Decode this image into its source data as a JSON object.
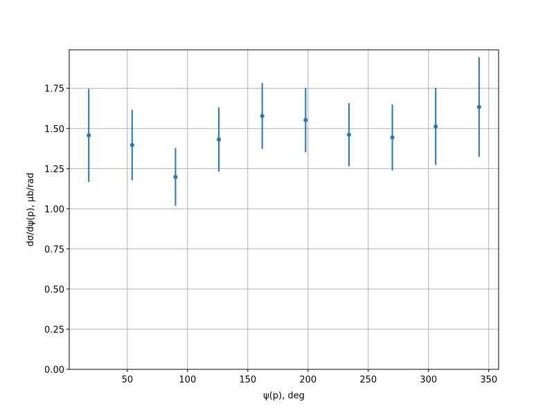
{
  "chart_data": {
    "type": "errorbar",
    "x_label": "ψ(p), deg",
    "y_label": "dσ/dψ(p), μb/rad",
    "x": [
      18,
      54,
      90,
      126,
      162,
      198,
      234,
      270,
      306,
      342
    ],
    "values": [
      1.457,
      1.397,
      1.198,
      1.431,
      1.578,
      1.552,
      1.461,
      1.444,
      1.513,
      1.634
    ],
    "errors": [
      0.29,
      0.22,
      0.18,
      0.2,
      0.205,
      0.2,
      0.197,
      0.205,
      0.24,
      0.31
    ],
    "color": "#1f77b4",
    "xlim": [
      1.8,
      358.2
    ],
    "xticks": [
      50,
      100,
      150,
      200,
      250,
      300,
      350
    ],
    "ylim": [
      0,
      1.99
    ],
    "yticks": [
      {
        "value": 0,
        "label": "0.00"
      },
      {
        "value": 0.25,
        "label": "0.25"
      },
      {
        "value": 0.5,
        "label": "0.50"
      },
      {
        "value": 0.75,
        "label": "0.75"
      },
      {
        "value": 1,
        "label": "1.00"
      },
      {
        "value": 1.25,
        "label": "1.25"
      },
      {
        "value": 1.5,
        "label": "1.50"
      },
      {
        "value": 1.75,
        "label": "1.75"
      }
    ],
    "grid": true
  }
}
